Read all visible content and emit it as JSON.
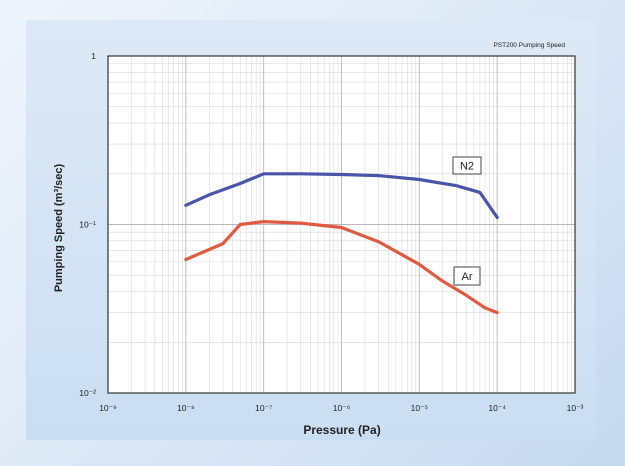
{
  "chart_data": {
    "type": "line",
    "title": "PST200 Pumping Speed",
    "xlabel": "Pressure (Pa)",
    "ylabel": "Pumping Speed (m³/sec)",
    "x_scale": "log",
    "y_scale": "log",
    "xlim": [
      1e-09,
      0.001
    ],
    "ylim": [
      0.01,
      1
    ],
    "grid": true,
    "x_ticks": [
      {
        "value": 1e-09,
        "label": "10⁻⁹"
      },
      {
        "value": 1e-08,
        "label": "10⁻⁸"
      },
      {
        "value": 1e-07,
        "label": "10⁻⁷"
      },
      {
        "value": 1e-06,
        "label": "10⁻⁶"
      },
      {
        "value": 1e-05,
        "label": "10⁻⁵"
      },
      {
        "value": 0.0001,
        "label": "10⁻⁴"
      },
      {
        "value": 0.001,
        "label": "10⁻³"
      }
    ],
    "y_ticks": [
      {
        "value": 1,
        "label": "1"
      },
      {
        "value": 0.1,
        "label": "10⁻¹"
      },
      {
        "value": 0.01,
        "label": "10⁻²"
      }
    ],
    "series": [
      {
        "name": "N2",
        "label_text": "N2",
        "color": "#4a55a8",
        "x": [
          1e-08,
          2e-08,
          5e-08,
          1e-07,
          3e-07,
          1e-06,
          3e-06,
          1e-05,
          3e-05,
          6e-05,
          0.0001
        ],
        "y": [
          0.13,
          0.15,
          0.175,
          0.2,
          0.2,
          0.198,
          0.195,
          0.185,
          0.17,
          0.155,
          0.11
        ]
      },
      {
        "name": "Ar",
        "label_text": "Ar",
        "color": "#e05a42",
        "x": [
          1e-08,
          3e-08,
          5e-08,
          1e-07,
          3e-07,
          1e-06,
          3e-06,
          1e-05,
          2e-05,
          4e-05,
          7e-05,
          0.0001
        ],
        "y": [
          0.062,
          0.077,
          0.1,
          0.104,
          0.102,
          0.096,
          0.079,
          0.058,
          0.046,
          0.038,
          0.032,
          0.03
        ]
      }
    ]
  }
}
